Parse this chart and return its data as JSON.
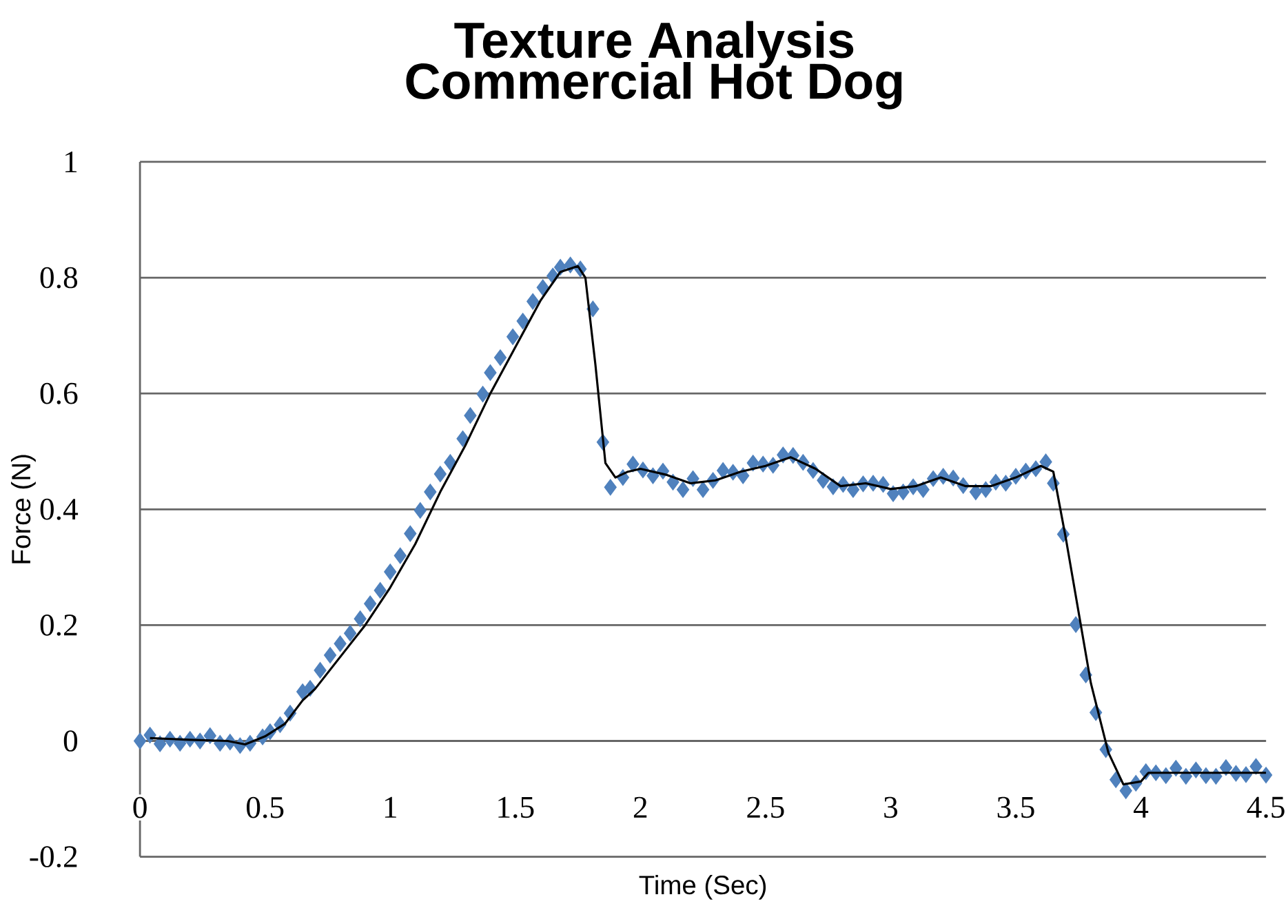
{
  "chart_data": {
    "type": "scatter",
    "title": "Texture Analysis",
    "subtitle": "Commercial Hot Dog",
    "xlabel": "Time (Sec)",
    "ylabel": "Force (N)",
    "xlim": [
      0,
      4.5
    ],
    "ylim": [
      -0.2,
      1
    ],
    "xticks": [
      0,
      0.5,
      1,
      1.5,
      2,
      2.5,
      3,
      3.5,
      4,
      4.5
    ],
    "yticks": [
      -0.2,
      0,
      0.2,
      0.4,
      0.6,
      0.8,
      1
    ],
    "grid": "y",
    "series": [
      {
        "color": "#4f81bd",
        "marker": "diamond",
        "x": [
          0,
          0.04,
          0.08,
          0.12,
          0.16,
          0.2,
          0.24,
          0.28,
          0.32,
          0.36,
          0.4,
          0.44,
          0.49,
          0.52,
          0.56,
          0.6,
          0.65,
          0.68,
          0.72,
          0.76,
          0.8,
          0.84,
          0.88,
          0.92,
          0.96,
          1.0,
          1.04,
          1.08,
          1.12,
          1.16,
          1.2,
          1.24,
          1.29,
          1.32,
          1.37,
          1.4,
          1.44,
          1.49,
          1.53,
          1.57,
          1.61,
          1.65,
          1.68,
          1.72,
          1.76,
          1.81,
          1.85,
          1.88,
          1.93,
          1.97,
          2.01,
          2.05,
          2.09,
          2.13,
          2.17,
          2.21,
          2.25,
          2.29,
          2.33,
          2.37,
          2.41,
          2.45,
          2.49,
          2.53,
          2.57,
          2.61,
          2.65,
          2.69,
          2.73,
          2.77,
          2.81,
          2.85,
          2.89,
          2.93,
          2.97,
          3.01,
          3.05,
          3.09,
          3.13,
          3.17,
          3.21,
          3.25,
          3.29,
          3.34,
          3.38,
          3.42,
          3.46,
          3.5,
          3.54,
          3.58,
          3.62,
          3.65,
          3.69,
          3.74,
          3.78,
          3.82,
          3.86,
          3.9,
          3.94,
          3.98,
          4.02,
          4.06,
          4.1,
          4.14,
          4.18,
          4.22,
          4.26,
          4.3,
          4.34,
          4.38,
          4.42,
          4.46,
          4.5
        ],
        "values": [
          0,
          0.01,
          -0.005,
          0.003,
          -0.004,
          0.003,
          0,
          0.009,
          -0.004,
          -0.002,
          -0.008,
          -0.004,
          0.007,
          0.016,
          0.028,
          0.048,
          0.085,
          0.091,
          0.122,
          0.148,
          0.168,
          0.186,
          0.211,
          0.237,
          0.26,
          0.292,
          0.32,
          0.358,
          0.398,
          0.43,
          0.461,
          0.481,
          0.522,
          0.562,
          0.599,
          0.636,
          0.662,
          0.698,
          0.725,
          0.759,
          0.783,
          0.803,
          0.818,
          0.822,
          0.815,
          0.746,
          0.516,
          0.438,
          0.455,
          0.478,
          0.468,
          0.458,
          0.466,
          0.447,
          0.434,
          0.453,
          0.434,
          0.45,
          0.467,
          0.464,
          0.458,
          0.48,
          0.478,
          0.476,
          0.494,
          0.493,
          0.481,
          0.467,
          0.45,
          0.439,
          0.443,
          0.434,
          0.444,
          0.445,
          0.443,
          0.427,
          0.43,
          0.439,
          0.434,
          0.453,
          0.457,
          0.454,
          0.441,
          0.43,
          0.434,
          0.447,
          0.445,
          0.457,
          0.466,
          0.47,
          0.482,
          0.445,
          0.357,
          0.201,
          0.114,
          0.049,
          -0.015,
          -0.067,
          -0.086,
          -0.073,
          -0.053,
          -0.055,
          -0.06,
          -0.047,
          -0.061,
          -0.05,
          -0.06,
          -0.061,
          -0.046,
          -0.056,
          -0.058,
          -0.044,
          -0.059
        ]
      },
      {
        "type": "line",
        "color": "#000000",
        "marker": "none",
        "x": [
          0.04,
          0.2,
          0.35,
          0.42,
          0.5,
          0.58,
          0.65,
          0.7,
          0.8,
          0.9,
          1.0,
          1.1,
          1.2,
          1.3,
          1.4,
          1.5,
          1.6,
          1.68,
          1.75,
          1.78,
          1.82,
          1.86,
          1.9,
          1.95,
          2.0,
          2.1,
          2.2,
          2.3,
          2.4,
          2.5,
          2.6,
          2.7,
          2.8,
          2.9,
          3.0,
          3.1,
          3.2,
          3.3,
          3.4,
          3.5,
          3.6,
          3.65,
          3.7,
          3.8,
          3.87,
          3.93,
          4.0,
          4.03,
          4.2,
          4.5
        ],
        "values": [
          0.005,
          0.002,
          0.0,
          -0.006,
          0.008,
          0.03,
          0.07,
          0.09,
          0.145,
          0.2,
          0.265,
          0.34,
          0.43,
          0.51,
          0.6,
          0.68,
          0.76,
          0.81,
          0.82,
          0.8,
          0.65,
          0.48,
          0.455,
          0.465,
          0.47,
          0.46,
          0.445,
          0.45,
          0.465,
          0.475,
          0.49,
          0.47,
          0.44,
          0.445,
          0.435,
          0.44,
          0.455,
          0.44,
          0.44,
          0.455,
          0.475,
          0.465,
          0.35,
          0.1,
          -0.02,
          -0.075,
          -0.07,
          -0.055,
          -0.055,
          -0.055
        ]
      }
    ]
  }
}
